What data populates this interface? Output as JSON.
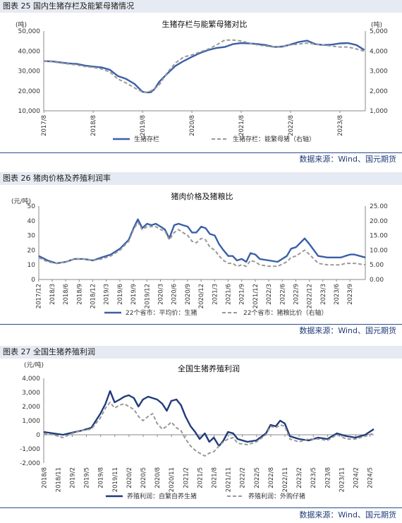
{
  "charts_meta": [
    {
      "header": "图表 25 国内生猪存栏及能繁母猪情况",
      "source": "数据来源：Wind、国元期货"
    },
    {
      "header": "图表 26 猪肉价格及养殖利润率",
      "source": "数据来源：Wind、国元期货"
    },
    {
      "header": "图表 27 全国生猪养殖利润",
      "source": "数据来源：Wind、国元期货"
    }
  ],
  "chart_data": [
    {
      "type": "line",
      "title": "生猪存栏与能繁母猪对比",
      "ylabel_left_unit": "(吨)",
      "ylabel_right_unit": "(吨)",
      "ylim_left": [
        10000,
        50000
      ],
      "ylim_right": [
        1000,
        5000
      ],
      "yticks_left": [
        "10,000",
        "20,000",
        "30,000",
        "40,000",
        "50,000"
      ],
      "yticks_right": [
        "1,000",
        "2,000",
        "3,000",
        "4,000",
        "5,000"
      ],
      "xticks": [
        "2017/8",
        "2018/8",
        "2019/8",
        "2020/8",
        "2021/8",
        "2022/8",
        "2023/8"
      ],
      "x_range": [
        2017.58,
        2024.1
      ],
      "series": [
        {
          "name": "生猪存栏",
          "axis": "left",
          "color": "#3a5fa8",
          "dash": false,
          "x": [
            2017.58,
            2017.75,
            2017.92,
            2018.08,
            2018.25,
            2018.42,
            2018.58,
            2018.75,
            2018.92,
            2019.08,
            2019.25,
            2019.42,
            2019.58,
            2019.67,
            2019.75,
            2019.83,
            2019.92,
            2020.08,
            2020.25,
            2020.42,
            2020.58,
            2020.75,
            2020.92,
            2021.08,
            2021.25,
            2021.42,
            2021.58,
            2021.75,
            2021.92,
            2022.08,
            2022.25,
            2022.42,
            2022.58,
            2022.75,
            2022.92,
            2023.08,
            2023.25,
            2023.42,
            2023.58,
            2023.75,
            2023.92,
            2024.08
          ],
          "y": [
            34900,
            34800,
            34300,
            33800,
            33500,
            32700,
            32200,
            31800,
            30600,
            27500,
            26000,
            23500,
            19600,
            19200,
            19300,
            21000,
            24500,
            28500,
            32500,
            35000,
            37000,
            39000,
            40500,
            41500,
            42000,
            43500,
            44000,
            43800,
            43500,
            43000,
            42000,
            42200,
            43200,
            44500,
            45200,
            43500,
            43000,
            43200,
            43800,
            44000,
            43000,
            40500
          ]
        },
        {
          "name": "生猪存栏：能繁母猪（右轴）",
          "axis": "right",
          "color": "#999999",
          "dash": true,
          "x": [
            2017.58,
            2017.75,
            2017.92,
            2018.08,
            2018.25,
            2018.42,
            2018.58,
            2018.75,
            2018.92,
            2019.08,
            2019.25,
            2019.42,
            2019.58,
            2019.67,
            2019.75,
            2019.83,
            2019.92,
            2020.08,
            2020.25,
            2020.42,
            2020.58,
            2020.75,
            2020.92,
            2021.08,
            2021.25,
            2021.42,
            2021.58,
            2021.75,
            2021.92,
            2022.08,
            2022.25,
            2022.42,
            2022.58,
            2022.75,
            2022.92,
            2023.08,
            2023.25,
            2023.42,
            2023.58,
            2023.75,
            2023.92,
            2024.08
          ],
          "y": [
            3490,
            3460,
            3400,
            3350,
            3300,
            3220,
            3180,
            3100,
            2950,
            2600,
            2400,
            2150,
            1950,
            1930,
            2000,
            2100,
            2300,
            2900,
            3400,
            3700,
            3800,
            3950,
            4100,
            4300,
            4550,
            4550,
            4500,
            4400,
            4300,
            4250,
            4200,
            4250,
            4300,
            4350,
            4400,
            4350,
            4300,
            4250,
            4200,
            4200,
            4100,
            3990
          ]
        }
      ]
    },
    {
      "type": "line",
      "title": "猪肉价格及猪粮比",
      "ylabel_left_unit": "(元/吨)",
      "ylim_left": [
        0,
        50
      ],
      "ylim_right": [
        0,
        25
      ],
      "yticks_left": [
        "0",
        "10",
        "20",
        "30",
        "40",
        "50"
      ],
      "yticks_right": [
        "0.00",
        "5.00",
        "10.00",
        "15.00",
        "20.00",
        "25.00"
      ],
      "xticks": [
        "2017/12",
        "2018/3",
        "2018/6",
        "2018/9",
        "2018/12",
        "2019/3",
        "2019/6",
        "2019/9",
        "2019/12",
        "2020/3",
        "2020/6",
        "2020/9",
        "2020/12",
        "2021/3",
        "2021/6",
        "2021/9",
        "2021/12",
        "2022/3",
        "2022/6",
        "2022/9",
        "2022/12",
        "2023/3",
        "2023/6",
        "2023/9"
      ],
      "x_range": [
        2017.92,
        2023.95
      ],
      "series": [
        {
          "name": "22个省市：平均价：生猪",
          "axis": "left",
          "color": "#3a5fa8",
          "dash": false,
          "x": [
            2017.92,
            2018.08,
            2018.25,
            2018.42,
            2018.58,
            2018.75,
            2018.92,
            2019.08,
            2019.25,
            2019.42,
            2019.58,
            2019.67,
            2019.75,
            2019.83,
            2019.92,
            2020.0,
            2020.08,
            2020.17,
            2020.25,
            2020.33,
            2020.42,
            2020.5,
            2020.58,
            2020.67,
            2020.75,
            2020.83,
            2020.92,
            2021.0,
            2021.08,
            2021.17,
            2021.25,
            2021.33,
            2021.42,
            2021.5,
            2021.58,
            2021.67,
            2021.75,
            2021.83,
            2021.92,
            2022.0,
            2022.17,
            2022.33,
            2022.5,
            2022.58,
            2022.67,
            2022.75,
            2022.83,
            2022.92,
            2023.08,
            2023.25,
            2023.42,
            2023.5,
            2023.58,
            2023.67,
            2023.75,
            2023.95
          ],
          "y": [
            16,
            13,
            11,
            12,
            14,
            14,
            13,
            15,
            17,
            21,
            27,
            35,
            41,
            35,
            38,
            37,
            38,
            36,
            34,
            28,
            37,
            38,
            37,
            36,
            32,
            32,
            36,
            35,
            31,
            30,
            24,
            20,
            16,
            16,
            13,
            14,
            12,
            18,
            17,
            14,
            13,
            12,
            16,
            21,
            22,
            25,
            28,
            24,
            16,
            15,
            15,
            15,
            16,
            17,
            17,
            15
          ]
        },
        {
          "name": "22个省市：猪粮比价（右轴）",
          "axis": "right",
          "color": "#999999",
          "dash": true,
          "x": [
            2017.92,
            2018.08,
            2018.25,
            2018.42,
            2018.58,
            2018.75,
            2018.92,
            2019.08,
            2019.25,
            2019.42,
            2019.58,
            2019.67,
            2019.75,
            2019.83,
            2019.92,
            2020.0,
            2020.08,
            2020.17,
            2020.25,
            2020.33,
            2020.42,
            2020.5,
            2020.58,
            2020.67,
            2020.75,
            2020.83,
            2020.92,
            2021.0,
            2021.08,
            2021.17,
            2021.25,
            2021.33,
            2021.42,
            2021.5,
            2021.58,
            2021.67,
            2021.75,
            2021.83,
            2021.92,
            2022.0,
            2022.17,
            2022.33,
            2022.5,
            2022.58,
            2022.67,
            2022.75,
            2022.83,
            2022.92,
            2023.08,
            2023.25,
            2023.42,
            2023.5,
            2023.58,
            2023.67,
            2023.75,
            2023.95
          ],
          "y": [
            7.5,
            6.0,
            5.5,
            6.0,
            7.0,
            7.0,
            6.5,
            7.0,
            8.0,
            10.0,
            13.0,
            17.0,
            19.5,
            17.0,
            18.0,
            18.0,
            18.0,
            17.0,
            16.5,
            13.5,
            16.0,
            17.0,
            16.0,
            15.0,
            13.0,
            12.5,
            14.0,
            13.5,
            11.0,
            10.0,
            8.0,
            6.5,
            5.5,
            5.5,
            4.5,
            5.0,
            4.5,
            6.5,
            6.0,
            5.0,
            4.5,
            4.5,
            6.0,
            7.5,
            8.0,
            9.0,
            10.0,
            8.5,
            5.5,
            5.0,
            5.0,
            5.0,
            5.5,
            5.5,
            5.5,
            5.0
          ]
        }
      ]
    },
    {
      "type": "line",
      "title": "全国生猪养殖利润",
      "ylabel_left_unit": "(元/吨)",
      "ylim_left": [
        -2000,
        4000
      ],
      "yticks_left": [
        "-2,000",
        "-1,000",
        "0",
        "1,000",
        "2,000",
        "3,000",
        "4,000"
      ],
      "xticks": [
        "2018/8",
        "2018/11",
        "2019/2",
        "2019/5",
        "2019/8",
        "2019/11",
        "2020/2",
        "2020/5",
        "2020/8",
        "2020/11",
        "2021/2",
        "2021/5",
        "2021/8",
        "2021/11",
        "2022/2",
        "2022/5",
        "2022/8",
        "2022/11",
        "2023/2",
        "2023/5",
        "2023/8",
        "2023/11",
        "2024/2",
        "2024/5"
      ],
      "x_range": [
        2018.58,
        2024.4
      ],
      "series": [
        {
          "name": "养殖利润：自繁自养生猪",
          "axis": "left",
          "color": "#1f3b7a",
          "dash": false,
          "x": [
            2018.58,
            2018.75,
            2018.92,
            2019.08,
            2019.25,
            2019.42,
            2019.58,
            2019.67,
            2019.75,
            2019.83,
            2019.92,
            2020.0,
            2020.08,
            2020.17,
            2020.25,
            2020.33,
            2020.42,
            2020.5,
            2020.58,
            2020.67,
            2020.75,
            2020.83,
            2020.92,
            2021.0,
            2021.08,
            2021.17,
            2021.25,
            2021.33,
            2021.42,
            2021.5,
            2021.58,
            2021.67,
            2021.75,
            2021.83,
            2021.92,
            2022.0,
            2022.17,
            2022.33,
            2022.5,
            2022.58,
            2022.67,
            2022.75,
            2022.83,
            2022.92,
            2023.08,
            2023.25,
            2023.42,
            2023.58,
            2023.75,
            2023.92,
            2024.08,
            2024.25,
            2024.4
          ],
          "y": [
            200,
            100,
            0,
            150,
            300,
            500,
            1500,
            2200,
            3100,
            2300,
            2500,
            2700,
            2800,
            2600,
            2000,
            2500,
            2700,
            2600,
            2500,
            2200,
            1700,
            2400,
            2500,
            2100,
            1300,
            600,
            200,
            -300,
            100,
            -500,
            -200,
            -800,
            -400,
            200,
            100,
            -300,
            -500,
            -400,
            100,
            700,
            600,
            1000,
            800,
            -100,
            -300,
            -400,
            -200,
            -300,
            100,
            -100,
            -200,
            0,
            400
          ]
        },
        {
          "name": "养殖利润：外购仔猪",
          "axis": "left",
          "color": "#999999",
          "dash": true,
          "x": [
            2018.58,
            2018.75,
            2018.92,
            2019.08,
            2019.25,
            2019.42,
            2019.58,
            2019.67,
            2019.75,
            2019.83,
            2019.92,
            2020.0,
            2020.08,
            2020.17,
            2020.25,
            2020.33,
            2020.42,
            2020.5,
            2020.58,
            2020.67,
            2020.75,
            2020.83,
            2020.92,
            2021.0,
            2021.08,
            2021.17,
            2021.25,
            2021.33,
            2021.42,
            2021.5,
            2021.58,
            2021.67,
            2021.75,
            2021.83,
            2021.92,
            2022.0,
            2022.17,
            2022.33,
            2022.5,
            2022.58,
            2022.67,
            2022.75,
            2022.83,
            2022.92,
            2023.08,
            2023.25,
            2023.42,
            2023.58,
            2023.75,
            2023.92,
            2024.08,
            2024.25,
            2024.4
          ],
          "y": [
            100,
            0,
            -200,
            100,
            300,
            400,
            1200,
            1900,
            2300,
            1900,
            2100,
            2200,
            2000,
            1800,
            1300,
            1000,
            1300,
            1500,
            800,
            400,
            600,
            900,
            500,
            300,
            -300,
            -800,
            -1100,
            -1300,
            -1500,
            -1300,
            -1200,
            -800,
            -500,
            -300,
            -200,
            -600,
            -700,
            -500,
            0,
            600,
            500,
            700,
            600,
            -300,
            -500,
            -300,
            -300,
            -400,
            0,
            -300,
            -300,
            -100,
            100
          ]
        }
      ]
    }
  ]
}
